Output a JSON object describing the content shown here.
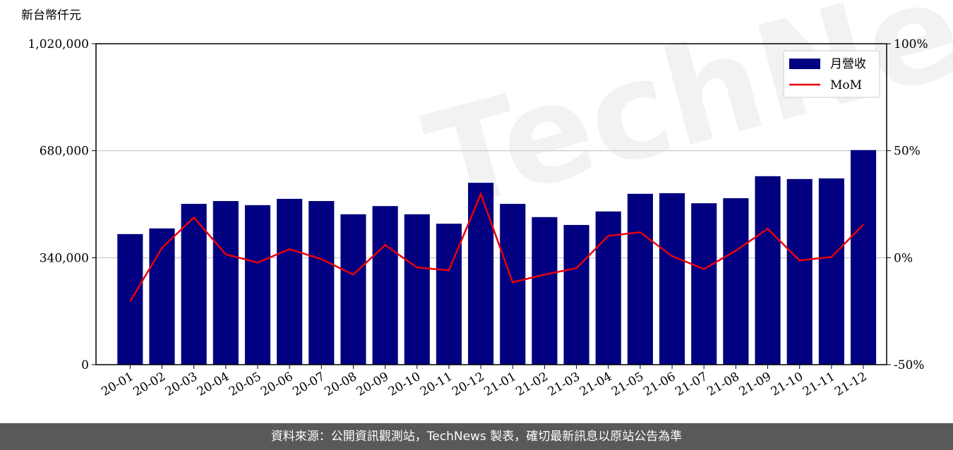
{
  "chart_data": {
    "type": "bar_line",
    "y_label": "新台幣仟元",
    "watermark": "TechNews",
    "categories": [
      "20-01",
      "20-02",
      "20-03",
      "20-04",
      "20-05",
      "20-06",
      "20-07",
      "20-08",
      "20-09",
      "20-10",
      "20-11",
      "20-12",
      "21-01",
      "21-02",
      "21-03",
      "21-04",
      "21-05",
      "21-06",
      "21-07",
      "21-08",
      "21-09",
      "21-10",
      "21-11",
      "21-12"
    ],
    "series": [
      {
        "name": "月營收",
        "type": "bar",
        "color": "#000080",
        "values": [
          415000,
          433000,
          511000,
          520000,
          507000,
          527000,
          520000,
          478000,
          504000,
          478000,
          448000,
          578000,
          511000,
          469000,
          444000,
          487000,
          543000,
          545000,
          513000,
          529000,
          599000,
          590000,
          592000,
          682000
        ]
      },
      {
        "name": "MoM",
        "type": "line",
        "axis": "y2",
        "color": "#e8000b",
        "values": [
          -20.4,
          4.6,
          18.8,
          1.6,
          -2.3,
          4.0,
          -0.7,
          -7.9,
          5.9,
          -4.6,
          -5.9,
          29.7,
          -11.5,
          -7.9,
          -4.9,
          10.2,
          11.9,
          0.7,
          -5.3,
          3.3,
          13.5,
          -1.3,
          0.3,
          15.5
        ]
      }
    ],
    "ylim": [
      0,
      1020000
    ],
    "yticks": [
      0,
      {
        "value": 340000,
        "label": "340,000"
      },
      {
        "value": 680000,
        "label": "680,000"
      },
      {
        "value": 1020000,
        "label": "1,020,000"
      }
    ],
    "y2lim": [
      -50,
      100
    ],
    "y2ticks": [
      {
        "value": -50,
        "label": "-50%"
      },
      {
        "value": 0,
        "label": "0%"
      },
      {
        "value": 50,
        "label": "50%"
      },
      {
        "value": 100,
        "label": "100%"
      }
    ],
    "grid": true,
    "legend": "upper right"
  },
  "footer": "資料來源：公開資訊觀測站，TechNews 製表，確切最新訊息以原站公告為準"
}
